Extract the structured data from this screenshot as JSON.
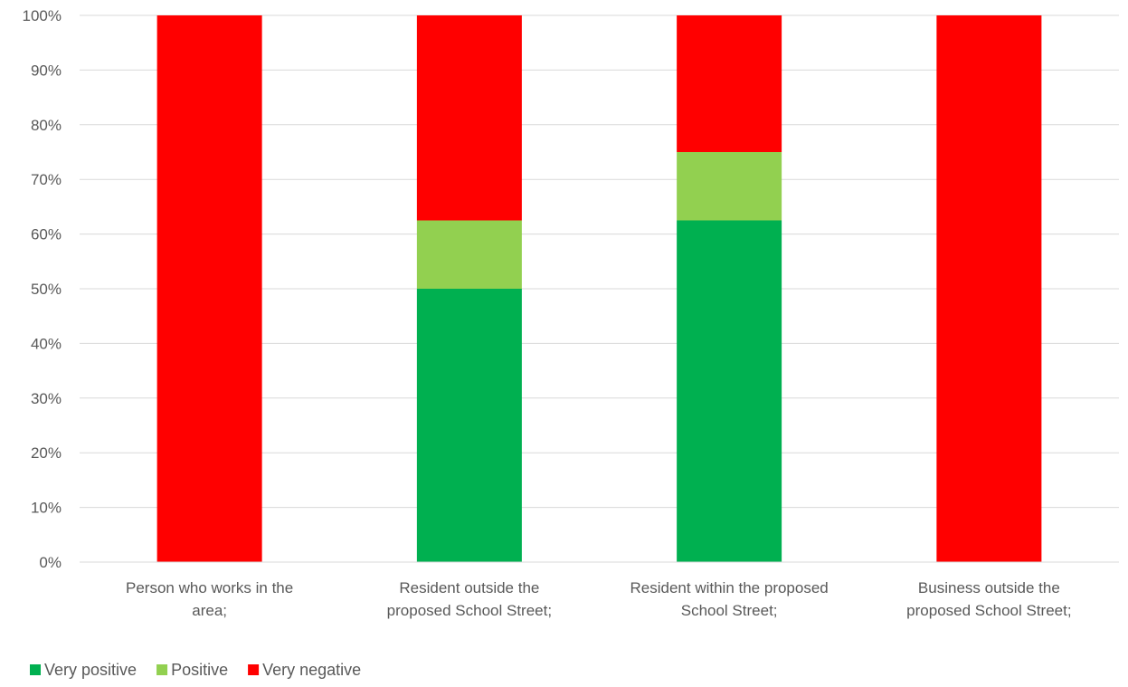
{
  "chart_data": {
    "type": "bar",
    "stacked": true,
    "categories": [
      [
        "Person who works in the",
        "area;"
      ],
      [
        "Resident outside the",
        "proposed School Street;"
      ],
      [
        "Resident within the proposed",
        "School Street;"
      ],
      [
        "Business outside the",
        "proposed School Street;"
      ]
    ],
    "series": [
      {
        "name": "Very positive",
        "color": "#00b050",
        "values": [
          0,
          50,
          62.5,
          0
        ]
      },
      {
        "name": "Positive",
        "color": "#92d050",
        "values": [
          0,
          12.5,
          12.5,
          0
        ]
      },
      {
        "name": "Very negative",
        "color": "#ff0000",
        "values": [
          100,
          37.5,
          25,
          100
        ]
      }
    ],
    "ylim": [
      0,
      100
    ],
    "yticks": [
      0,
      10,
      20,
      30,
      40,
      50,
      60,
      70,
      80,
      90,
      100
    ],
    "ytick_labels": [
      "0%",
      "10%",
      "20%",
      "30%",
      "40%",
      "50%",
      "60%",
      "70%",
      "80%",
      "90%",
      "100%"
    ],
    "grid": true,
    "legend_position": "bottom-left",
    "title": "",
    "xlabel": "",
    "ylabel": ""
  }
}
